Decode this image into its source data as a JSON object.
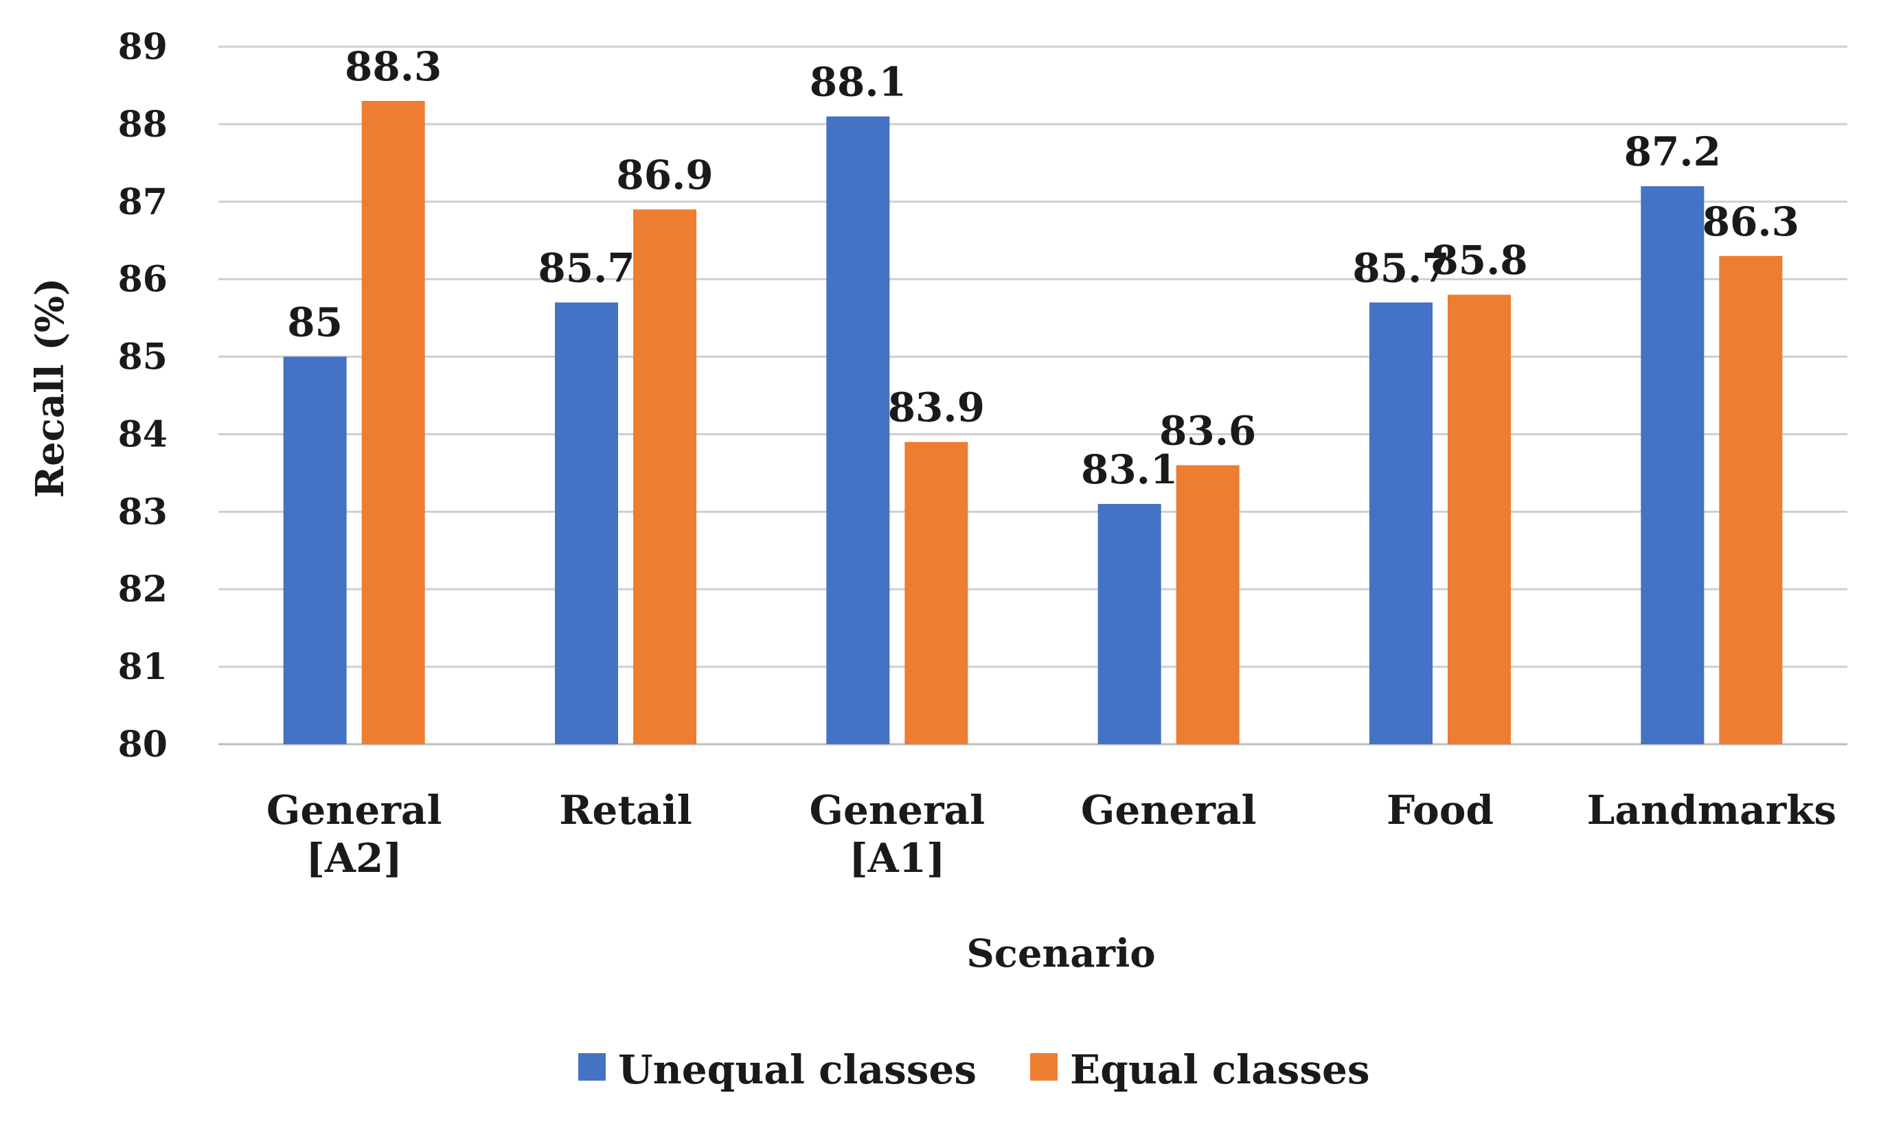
{
  "chart_data": {
    "type": "bar",
    "title": "",
    "xlabel": "Scenario",
    "ylabel": "Recall (%)",
    "ylim": [
      80,
      89
    ],
    "yticks": [
      80,
      81,
      82,
      83,
      84,
      85,
      86,
      87,
      88,
      89
    ],
    "grid": true,
    "legend_position": "bottom",
    "categories": [
      [
        "General",
        "[A2]"
      ],
      [
        "Retail"
      ],
      [
        "General",
        "[A1]"
      ],
      [
        "General"
      ],
      [
        "Food"
      ],
      [
        "Landmarks"
      ]
    ],
    "series": [
      {
        "name": "Unequal classes",
        "color": "#4472c4",
        "values": [
          85,
          85.7,
          88.1,
          83.1,
          85.7,
          87.2
        ]
      },
      {
        "name": "Equal classes",
        "color": "#ed7d31",
        "values": [
          88.3,
          86.9,
          83.9,
          83.6,
          85.8,
          86.3
        ]
      }
    ]
  }
}
